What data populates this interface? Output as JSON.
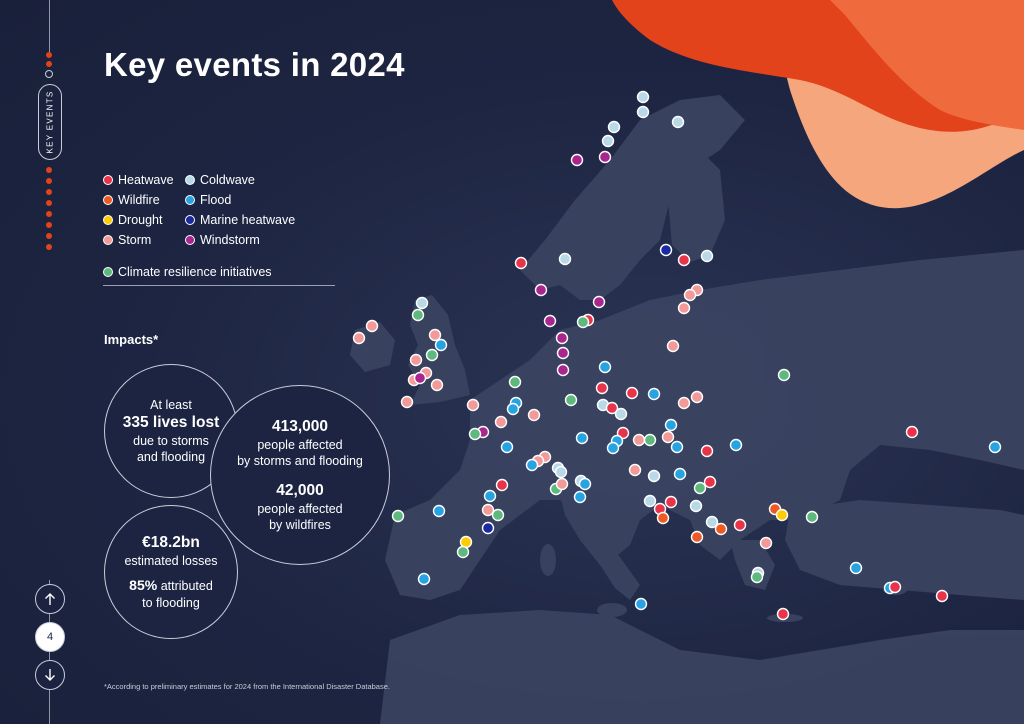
{
  "title": "Key events in 2024",
  "sidebar": {
    "section_label": "KEY EVENTS",
    "page_number": "4",
    "up_icon": "arrow-up-icon",
    "down_icon": "arrow-down-icon"
  },
  "legend": {
    "items": [
      {
        "key": "heatwave",
        "label": "Heatwave",
        "color": "#e8344a"
      },
      {
        "key": "coldwave",
        "label": "Coldwave",
        "color": "#b9d9e8"
      },
      {
        "key": "wildfire",
        "label": "Wildfire",
        "color": "#ee5a24"
      },
      {
        "key": "flood",
        "label": "Flood",
        "color": "#27a3e2"
      },
      {
        "key": "drought",
        "label": "Drought",
        "color": "#ffcb05"
      },
      {
        "key": "marine_heatwave",
        "label": "Marine heatwave",
        "color": "#1b2aa0"
      },
      {
        "key": "storm",
        "label": "Storm",
        "color": "#f29a9a"
      },
      {
        "key": "windstorm",
        "label": "Windstorm",
        "color": "#a8268e"
      }
    ],
    "resilience": {
      "key": "resilience",
      "label": "Climate resilience initiatives",
      "color": "#5fb97e"
    }
  },
  "impacts": {
    "heading": "Impacts*",
    "lives": {
      "line1": "At least",
      "value": "335 lives lost",
      "line2": "due to storms",
      "line3": "and flooding"
    },
    "people": {
      "value1": "413,000",
      "line1": "people affected",
      "line2": "by storms and flooding",
      "value2": "42,000",
      "line3": "people affected",
      "line4": "by wildfires"
    },
    "losses": {
      "value1": "€18.2bn",
      "line1": "estimated losses",
      "value2": "85%",
      "line2": "attributed",
      "line3": "to flooding"
    }
  },
  "footnote": "*According to preliminary estimates for 2024 from the International Disaster Database.",
  "accent_colors": {
    "orange_dark": "#e2431b",
    "orange_mid": "#ef6a3c",
    "orange_light": "#f6a67c",
    "background": "#1b2340",
    "land": "#3b4562"
  }
}
